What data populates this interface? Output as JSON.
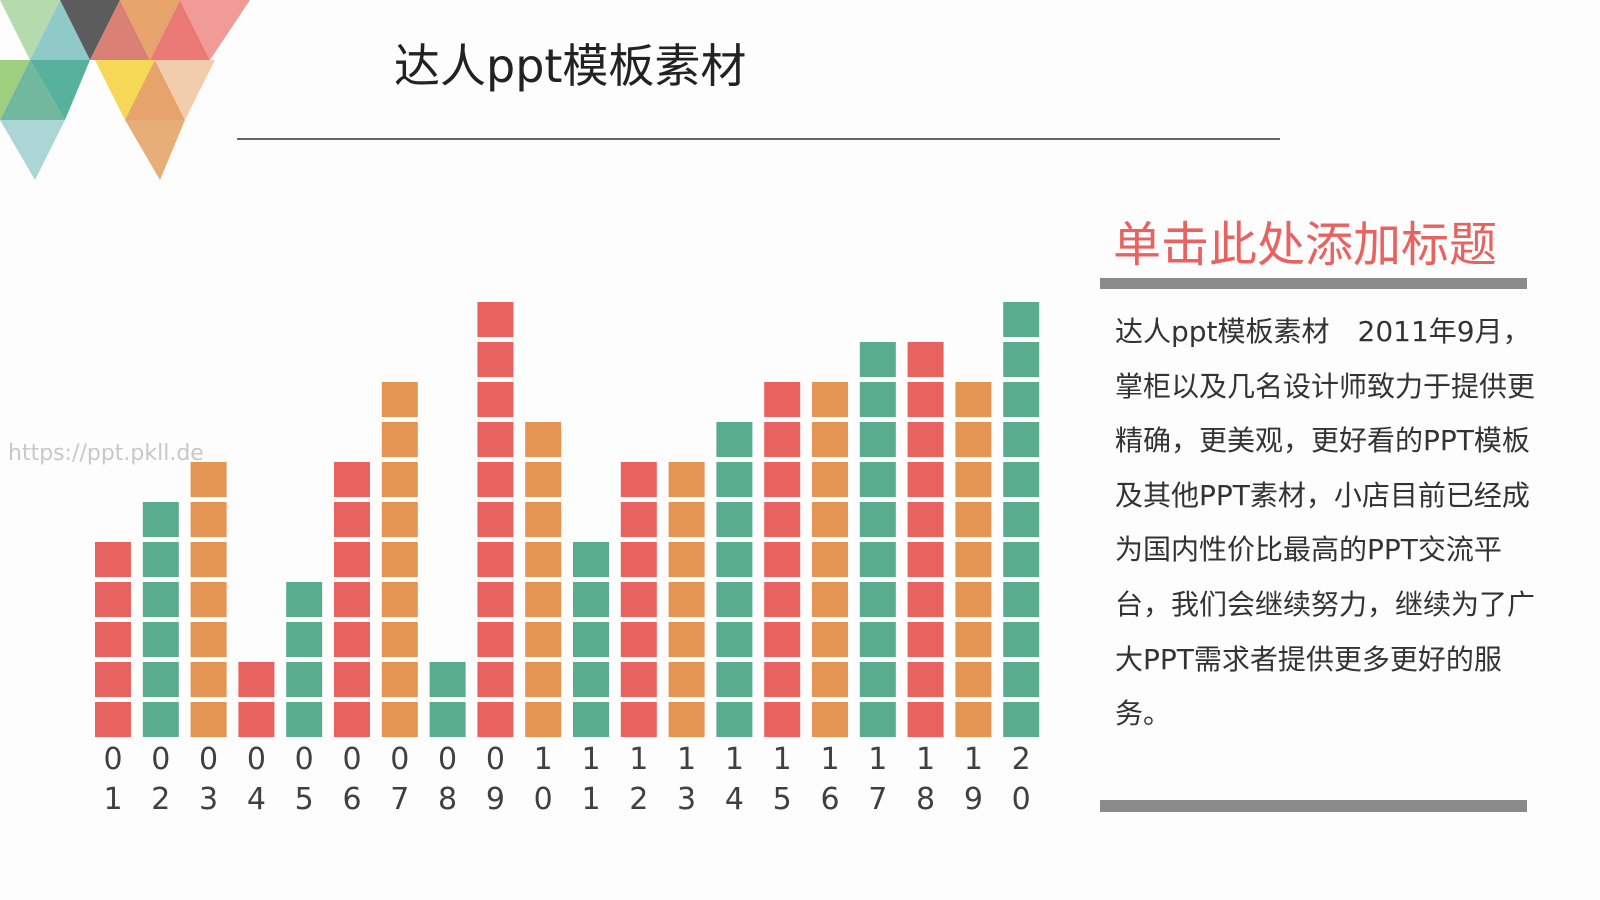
{
  "header": {
    "title": "达人ppt模板素材"
  },
  "watermark": "https://ppt.pkll.de",
  "chart_data": {
    "type": "bar",
    "categories": [
      "01",
      "02",
      "03",
      "04",
      "05",
      "06",
      "07",
      "08",
      "09",
      "10",
      "11",
      "12",
      "13",
      "14",
      "15",
      "16",
      "17",
      "18",
      "19",
      "20"
    ],
    "values": [
      5,
      6,
      7,
      2,
      4,
      7,
      9,
      2,
      11,
      8,
      5,
      7,
      7,
      8,
      9,
      9,
      10,
      10,
      9,
      11
    ],
    "colors": [
      "#e8625f",
      "#5aac8f",
      "#e49453",
      "#e8625f",
      "#5aac8f",
      "#e8625f",
      "#e49453",
      "#5aac8f",
      "#e8625f",
      "#e49453",
      "#5aac8f",
      "#e8625f",
      "#e49453",
      "#5aac8f",
      "#e8625f",
      "#e49453",
      "#5aac8f",
      "#e8625f",
      "#e49453",
      "#5aac8f"
    ]
  },
  "sidebar": {
    "heading": "单击此处添加标题",
    "paragraph": "达人ppt模板素材　2011年9月，掌柜以及几名设计师致力于提供更精确，更美观，更好看的PPT模板及其他PPT素材，小店目前已经成为国内性价比最高的PPT交流平台，我们会继续努力，继续为了广大PPT需求者提供更多更好的服务。"
  }
}
